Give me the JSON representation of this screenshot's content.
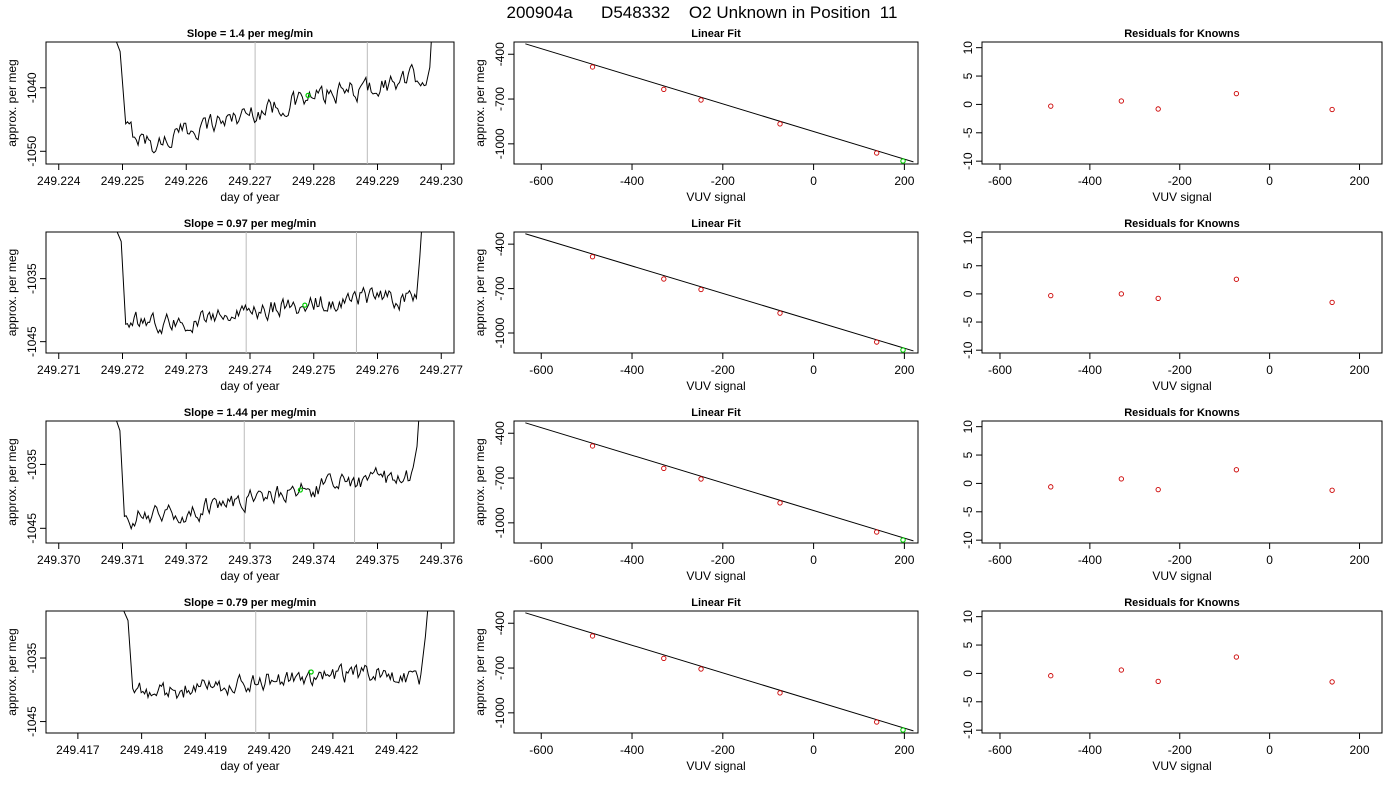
{
  "page_title": "200904a      D548332    O2 Unknown in Position  11",
  "colors": {
    "trace": "#000000",
    "known": "#cc0000",
    "unknown": "#00cc00",
    "vline": "#bbbbbb",
    "fit": "#000000",
    "frame": "#000000"
  },
  "chart_data": [
    {
      "type": "line",
      "title": "Slope =  1.4  per meg/min",
      "xlabel": "day of year",
      "ylabel": "approx. per meg",
      "xlim": [
        249.2238,
        249.2302
      ],
      "ylim": [
        -1052.0,
        -1032.8
      ],
      "xticks": [
        "249.224",
        "249.225",
        "249.226",
        "249.227",
        "249.228",
        "249.229",
        "249.230"
      ],
      "xtick_values": [
        249.224,
        249.225,
        249.226,
        249.227,
        249.228,
        249.229,
        249.23
      ],
      "yticks": [
        "-1050",
        "-1040"
      ],
      "ytick_values": [
        -1050,
        -1040
      ],
      "vlines": [
        249.22708,
        249.22884
      ],
      "unknown_point": {
        "x": 249.22791,
        "y": -1041.2
      },
      "trace": {
        "x_start": 249.22505,
        "x_end": 249.22976,
        "noise_amp": 1.6,
        "drop": {
          "x_from": 249.2248,
          "y_from": -1030
        },
        "rise": {
          "x_to": 249.22986,
          "y_to": -1030
        },
        "knots_x": [
          249.22505,
          249.2255,
          249.2262,
          249.227,
          249.2278,
          249.2286,
          249.2294,
          249.22968
        ],
        "knots_y": [
          -1046.5,
          -1049.0,
          -1046.0,
          -1044.0,
          -1042.0,
          -1040.5,
          -1039.0,
          -1038.0
        ]
      }
    },
    {
      "type": "scatter",
      "title": "Linear Fit",
      "xlabel": "VUV signal",
      "ylabel": "approx. per meg",
      "xlim": [
        -660,
        230
      ],
      "ylim": [
        -1135,
        -318
      ],
      "xticks": [
        "-600",
        "-400",
        "-200",
        "0",
        "200"
      ],
      "xtick_values": [
        -600,
        -400,
        -200,
        0,
        200
      ],
      "yticks": [
        "-400",
        "-700",
        "-1000"
      ],
      "ytick_values": [
        -400,
        -700,
        -1000
      ],
      "fit_line": {
        "x": [
          -635,
          220
        ],
        "y": [
          -330,
          -1121
        ]
      },
      "knowns": [
        {
          "x": -487,
          "y": -485
        },
        {
          "x": -330,
          "y": -635
        },
        {
          "x": -248,
          "y": -706
        },
        {
          "x": -74,
          "y": -866
        },
        {
          "x": 139,
          "y": -1061
        }
      ],
      "unknown": {
        "x": 197,
        "y": -1115
      }
    },
    {
      "type": "scatter",
      "title": "Residuals for Knowns",
      "xlabel": "VUV signal",
      "ylabel": "",
      "xlim": [
        -640,
        250
      ],
      "ylim": [
        -10.5,
        11.0
      ],
      "xticks": [
        "-600",
        "-400",
        "-200",
        "0",
        "200"
      ],
      "xtick_values": [
        -600,
        -400,
        -200,
        0,
        200
      ],
      "yticks": [
        "-10",
        "-5",
        "0",
        "5",
        "10"
      ],
      "ytick_values": [
        -10,
        -5,
        0,
        5,
        10
      ],
      "points": [
        {
          "x": -487,
          "y": -0.3
        },
        {
          "x": -330,
          "y": 0.6
        },
        {
          "x": -248,
          "y": -0.8
        },
        {
          "x": -74,
          "y": 1.9
        },
        {
          "x": 139,
          "y": -0.9
        }
      ]
    },
    {
      "type": "line",
      "title": "Slope =  0.97  per meg/min",
      "xlabel": "day of year",
      "ylabel": "approx. per meg",
      "xlim": [
        249.2708,
        249.2772
      ],
      "ylim": [
        -1046.8,
        -1027.6
      ],
      "xticks": [
        "249.271",
        "249.272",
        "249.273",
        "249.274",
        "249.275",
        "249.276",
        "249.277"
      ],
      "xtick_values": [
        249.271,
        249.272,
        249.273,
        249.274,
        249.275,
        249.276,
        249.277
      ],
      "yticks": [
        "-1045",
        "-1035"
      ],
      "ytick_values": [
        -1045,
        -1035
      ],
      "vlines": [
        249.27394,
        249.27567
      ],
      "unknown_point": {
        "x": 249.27486,
        "y": -1039.2
      },
      "trace": {
        "x_start": 249.27205,
        "x_end": 249.27661,
        "noise_amp": 1.5,
        "drop": {
          "x_from": 249.27185,
          "y_from": -1026
        },
        "rise": {
          "x_to": 249.2767,
          "y_to": -1026
        },
        "knots_x": [
          249.27205,
          249.2728,
          249.2735,
          249.2742,
          249.275,
          249.2758,
          249.27655
        ],
        "knots_y": [
          -1041.5,
          -1042.0,
          -1041.0,
          -1040.0,
          -1039.0,
          -1038.0,
          -1038.5
        ]
      }
    },
    {
      "type": "scatter",
      "title": "Linear Fit",
      "xlabel": "VUV signal",
      "ylabel": "approx. per meg",
      "xlim": [
        -660,
        230
      ],
      "ylim": [
        -1135,
        -318
      ],
      "xticks": [
        "-600",
        "-400",
        "-200",
        "0",
        "200"
      ],
      "xtick_values": [
        -600,
        -400,
        -200,
        0,
        200
      ],
      "yticks": [
        "-400",
        "-700",
        "-1000"
      ],
      "ytick_values": [
        -400,
        -700,
        -1000
      ],
      "fit_line": {
        "x": [
          -635,
          220
        ],
        "y": [
          -330,
          -1121
        ]
      },
      "knowns": [
        {
          "x": -487,
          "y": -485
        },
        {
          "x": -330,
          "y": -635
        },
        {
          "x": -248,
          "y": -706
        },
        {
          "x": -74,
          "y": -866
        },
        {
          "x": 139,
          "y": -1061
        }
      ],
      "unknown": {
        "x": 197,
        "y": -1115
      }
    },
    {
      "type": "scatter",
      "title": "Residuals for Knowns",
      "xlabel": "VUV signal",
      "ylabel": "",
      "xlim": [
        -640,
        250
      ],
      "ylim": [
        -10.5,
        11.0
      ],
      "xticks": [
        "-600",
        "-400",
        "-200",
        "0",
        "200"
      ],
      "xtick_values": [
        -600,
        -400,
        -200,
        0,
        200
      ],
      "yticks": [
        "-10",
        "-5",
        "0",
        "5",
        "10"
      ],
      "ytick_values": [
        -10,
        -5,
        0,
        5,
        10
      ],
      "points": [
        {
          "x": -487,
          "y": -0.3
        },
        {
          "x": -330,
          "y": 0.0
        },
        {
          "x": -248,
          "y": -0.8
        },
        {
          "x": -74,
          "y": 2.6
        },
        {
          "x": 139,
          "y": -1.5
        }
      ]
    },
    {
      "type": "line",
      "title": "Slope =  1.44  per meg/min",
      "xlabel": "day of year",
      "ylabel": "approx. per meg",
      "xlim": [
        249.3698,
        249.3762
      ],
      "ylim": [
        -1047.3,
        -1028.2
      ],
      "xticks": [
        "249.370",
        "249.371",
        "249.372",
        "249.373",
        "249.374",
        "249.375",
        "249.376"
      ],
      "xtick_values": [
        249.37,
        249.371,
        249.372,
        249.373,
        249.374,
        249.375,
        249.376
      ],
      "yticks": [
        "-1045",
        "-1035"
      ],
      "ytick_values": [
        -1045,
        -1035
      ],
      "vlines": [
        249.37291,
        249.37464
      ],
      "unknown_point": {
        "x": 249.37379,
        "y": -1039.0
      },
      "trace": {
        "x_start": 249.37103,
        "x_end": 249.37556,
        "noise_amp": 1.5,
        "drop": {
          "x_from": 249.37083,
          "y_from": -1026
        },
        "rise": {
          "x_to": 249.37566,
          "y_to": -1026
        },
        "knots_x": [
          249.37103,
          249.3717,
          249.3725,
          249.3733,
          249.374,
          249.3748,
          249.3755
        ],
        "knots_y": [
          -1043.5,
          -1043.0,
          -1041.5,
          -1040.0,
          -1038.5,
          -1037.5,
          -1037.0
        ]
      }
    },
    {
      "type": "scatter",
      "title": "Linear Fit",
      "xlabel": "VUV signal",
      "ylabel": "approx. per meg",
      "xlim": [
        -660,
        230
      ],
      "ylim": [
        -1135,
        -318
      ],
      "xticks": [
        "-600",
        "-400",
        "-200",
        "0",
        "200"
      ],
      "xtick_values": [
        -600,
        -400,
        -200,
        0,
        200
      ],
      "yticks": [
        "-400",
        "-700",
        "-1000"
      ],
      "ytick_values": [
        -400,
        -700,
        -1000
      ],
      "fit_line": {
        "x": [
          -635,
          220
        ],
        "y": [
          -330,
          -1121
        ]
      },
      "knowns": [
        {
          "x": -487,
          "y": -485
        },
        {
          "x": -330,
          "y": -635
        },
        {
          "x": -248,
          "y": -706
        },
        {
          "x": -74,
          "y": -866
        },
        {
          "x": 139,
          "y": -1061
        }
      ],
      "unknown": {
        "x": 197,
        "y": -1115
      }
    },
    {
      "type": "scatter",
      "title": "Residuals for Knowns",
      "xlabel": "VUV signal",
      "ylabel": "",
      "xlim": [
        -640,
        250
      ],
      "ylim": [
        -10.5,
        11.0
      ],
      "xticks": [
        "-600",
        "-400",
        "-200",
        "0",
        "200"
      ],
      "xtick_values": [
        -600,
        -400,
        -200,
        0,
        200
      ],
      "yticks": [
        "-10",
        "-5",
        "0",
        "5",
        "10"
      ],
      "ytick_values": [
        -10,
        -5,
        0,
        5,
        10
      ],
      "points": [
        {
          "x": -487,
          "y": -0.6
        },
        {
          "x": -330,
          "y": 0.8
        },
        {
          "x": -248,
          "y": -1.1
        },
        {
          "x": -74,
          "y": 2.4
        },
        {
          "x": 139,
          "y": -1.2
        }
      ]
    },
    {
      "type": "line",
      "title": "Slope =  0.79  per meg/min",
      "xlabel": "day of year",
      "ylabel": "approx. per meg",
      "xlim": [
        249.4165,
        249.4229
      ],
      "ylim": [
        -1046.8,
        -1027.6
      ],
      "xticks": [
        "249.417",
        "249.418",
        "249.419",
        "249.420",
        "249.421",
        "249.422"
      ],
      "xtick_values": [
        249.417,
        249.418,
        249.419,
        249.42,
        249.421,
        249.422
      ],
      "yticks": [
        "-1045",
        "-1035"
      ],
      "ytick_values": [
        -1045,
        -1035
      ],
      "vlines": [
        249.41979,
        249.42153
      ],
      "unknown_point": {
        "x": 249.42066,
        "y": -1037.2
      },
      "trace": {
        "x_start": 249.41786,
        "x_end": 249.42238,
        "noise_amp": 1.4,
        "drop": {
          "x_from": 249.41765,
          "y_from": -1026
        },
        "rise": {
          "x_to": 249.4225,
          "y_to": -1026
        },
        "knots_x": [
          249.41786,
          249.4186,
          249.4194,
          249.4202,
          249.421,
          249.4218,
          249.42232
        ],
        "knots_y": [
          -1040.0,
          -1040.2,
          -1039.2,
          -1038.2,
          -1038.0,
          -1037.5,
          -1038.0
        ]
      }
    },
    {
      "type": "scatter",
      "title": "Linear Fit",
      "xlabel": "VUV signal",
      "ylabel": "approx. per meg",
      "xlim": [
        -660,
        230
      ],
      "ylim": [
        -1135,
        -318
      ],
      "xticks": [
        "-600",
        "-400",
        "-200",
        "0",
        "200"
      ],
      "xtick_values": [
        -600,
        -400,
        -200,
        0,
        200
      ],
      "yticks": [
        "-400",
        "-700",
        "-1000"
      ],
      "ytick_values": [
        -400,
        -700,
        -1000
      ],
      "fit_line": {
        "x": [
          -635,
          220
        ],
        "y": [
          -330,
          -1121
        ]
      },
      "knowns": [
        {
          "x": -487,
          "y": -485
        },
        {
          "x": -330,
          "y": -635
        },
        {
          "x": -248,
          "y": -706
        },
        {
          "x": -74,
          "y": -866
        },
        {
          "x": 139,
          "y": -1061
        }
      ],
      "unknown": {
        "x": 197,
        "y": -1115
      }
    },
    {
      "type": "scatter",
      "title": "Residuals for Knowns",
      "xlabel": "VUV signal",
      "ylabel": "",
      "xlim": [
        -640,
        250
      ],
      "ylim": [
        -10.5,
        11.0
      ],
      "xticks": [
        "-600",
        "-400",
        "-200",
        "0",
        "200"
      ],
      "xtick_values": [
        -600,
        -400,
        -200,
        0,
        200
      ],
      "yticks": [
        "-10",
        "-5",
        "0",
        "5",
        "10"
      ],
      "ytick_values": [
        -10,
        -5,
        0,
        5,
        10
      ],
      "points": [
        {
          "x": -487,
          "y": -0.4
        },
        {
          "x": -330,
          "y": 0.6
        },
        {
          "x": -248,
          "y": -1.4
        },
        {
          "x": -74,
          "y": 2.9
        },
        {
          "x": 139,
          "y": -1.5
        }
      ]
    }
  ]
}
